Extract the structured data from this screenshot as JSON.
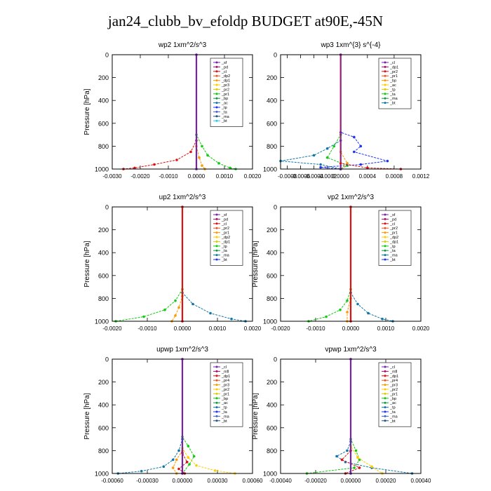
{
  "title": "jan24_clubb_bv_efoldp  BUDGET at90E,-45N",
  "chart_data": [
    {
      "id": "wp2",
      "type": "line",
      "title": "wp2   1xm^2/s^3",
      "ylabel": "Pressure  [hPa]",
      "xlim": [
        -0.003,
        0.002
      ],
      "ylim": [
        1000,
        0
      ],
      "xticks": [
        -0.003,
        -0.002,
        -0.001,
        0.0,
        0.001,
        0.002
      ],
      "xtick_labels": [
        "-0.0030",
        "-0.0020",
        "-0.0010",
        "0.0000",
        "0.0010",
        "0.0020"
      ],
      "yticks": [
        0,
        200,
        400,
        600,
        800,
        1000
      ],
      "legend": [
        "_sf",
        "_pd",
        "_cl",
        "_dp2",
        "_dp1",
        "_pr3",
        "_pr2",
        "_pr1",
        "_bp",
        "_ac",
        "_tp",
        "_ta",
        "_ma",
        "_bt"
      ],
      "series": [
        {
          "name": "_dp1",
          "color": "#dd1111",
          "points": [
            [
              0,
              0
            ],
            [
              0,
              750
            ],
            [
              -0.0002,
              850
            ],
            [
              -0.0007,
              920
            ],
            [
              -0.0015,
              960
            ],
            [
              -0.0022,
              990
            ],
            [
              -0.0026,
              1000
            ]
          ]
        },
        {
          "name": "_pr1",
          "color": "#11cc11",
          "points": [
            [
              0,
              0
            ],
            [
              0,
              700
            ],
            [
              0.0002,
              800
            ],
            [
              0.0004,
              880
            ],
            [
              0.0008,
              950
            ],
            [
              0.0012,
              990
            ],
            [
              0.0014,
              1000
            ]
          ]
        },
        {
          "name": "_pr2",
          "color": "#ff9900",
          "points": [
            [
              0,
              0
            ],
            [
              0,
              800
            ],
            [
              0.0001,
              900
            ],
            [
              0.0002,
              970
            ],
            [
              0.0003,
              1000
            ]
          ]
        },
        {
          "name": "_pd",
          "color": "#7722aa",
          "points": [
            [
              0,
              0
            ],
            [
              0,
              1000
            ]
          ]
        }
      ]
    },
    {
      "id": "wp3",
      "type": "line",
      "title": "wp3   1xm^{3} s^{-4}",
      "ylabel": "",
      "xlim": [
        -0.0009,
        0.0012
      ],
      "ylim": [
        1000,
        0
      ],
      "xticks": [
        -0.0008,
        -0.0006,
        -0.0004,
        -0.0002,
        0.0,
        0.0004,
        0.0008,
        0.0012
      ],
      "xtick_labels": [
        "-0.0008",
        "-0.0006",
        "-0.0004",
        "-0.0002",
        "0.0000",
        "0.0004",
        "0.0008",
        "0.0012"
      ],
      "yticks": [
        0,
        200,
        400,
        600,
        800,
        1000
      ],
      "legend": [
        "_cl",
        "_dp1",
        "_pr2",
        "_pr1",
        "_bp",
        "_ac",
        "_tp",
        "_ta",
        "_ma",
        "_bt"
      ],
      "series": [
        {
          "name": "_ac",
          "color": "#11cc11",
          "points": [
            [
              0,
              0
            ],
            [
              0,
              700
            ],
            [
              -0.0001,
              800
            ],
            [
              -0.0002,
              900
            ],
            [
              0.0001,
              970
            ],
            [
              0,
              1000
            ]
          ]
        },
        {
          "name": "_ta",
          "color": "#2233ee",
          "points": [
            [
              0,
              0
            ],
            [
              0,
              680
            ],
            [
              0.0002,
              720
            ],
            [
              0.0003,
              800
            ],
            [
              0.0002,
              850
            ],
            [
              0.0007,
              930
            ],
            [
              0.0003,
              960
            ],
            [
              -0.0003,
              985
            ],
            [
              0,
              1000
            ]
          ]
        },
        {
          "name": "_ma",
          "color": "#1177aa",
          "points": [
            [
              0,
              0
            ],
            [
              0,
              750
            ],
            [
              -0.0002,
              820
            ],
            [
              -0.0004,
              880
            ],
            [
              -0.0009,
              930
            ],
            [
              -0.0003,
              960
            ],
            [
              0,
              1000
            ]
          ]
        },
        {
          "name": "_pr2",
          "color": "#ff9900",
          "points": [
            [
              0,
              0
            ],
            [
              0,
              850
            ],
            [
              0.0001,
              950
            ],
            [
              0,
              1000
            ]
          ]
        },
        {
          "name": "_cl",
          "color": "#7722aa",
          "points": [
            [
              0,
              0
            ],
            [
              0,
              1000
            ]
          ]
        },
        {
          "name": "_dp1",
          "color": "#dd1111",
          "points": [
            [
              0,
              0
            ],
            [
              0,
              950
            ],
            [
              0.0004,
              990
            ],
            [
              0.0009,
              1000
            ]
          ]
        }
      ]
    },
    {
      "id": "up2",
      "type": "line",
      "title": "up2   1xm^2/s^3",
      "ylabel": "Pressure  [hPa]",
      "xlim": [
        -0.002,
        0.002
      ],
      "ylim": [
        1000,
        0
      ],
      "xticks": [
        -0.002,
        -0.001,
        0.0,
        0.001,
        0.002
      ],
      "xtick_labels": [
        "-0.0020",
        "-0.0010",
        "0.0000",
        "0.0010",
        "0.0020"
      ],
      "yticks": [
        0,
        200,
        400,
        600,
        800,
        1000
      ],
      "legend": [
        "_sf",
        "_pd",
        "_cl",
        "_pr2",
        "_pr1",
        "_dp2",
        "_dp1",
        "_tp",
        "_ta",
        "_ma",
        "_bt"
      ],
      "series": [
        {
          "name": "_dp2",
          "color": "#11cc11",
          "points": [
            [
              0,
              0
            ],
            [
              0,
              720
            ],
            [
              -0.0002,
              820
            ],
            [
              -0.0005,
              900
            ],
            [
              -0.0011,
              960
            ],
            [
              -0.0019,
              1000
            ]
          ]
        },
        {
          "name": "_ta",
          "color": "#1177aa",
          "points": [
            [
              0,
              0
            ],
            [
              0,
              750
            ],
            [
              0.0003,
              850
            ],
            [
              0.0008,
              930
            ],
            [
              0.0014,
              980
            ],
            [
              0.0018,
              1000
            ]
          ]
        },
        {
          "name": "_pr1",
          "color": "#ff9900",
          "points": [
            [
              0,
              0
            ],
            [
              0,
              780
            ],
            [
              -0.0001,
              880
            ],
            [
              -0.0002,
              950
            ],
            [
              -0.0003,
              1000
            ]
          ]
        },
        {
          "name": "_pd",
          "color": "#dd1111",
          "points": [
            [
              0,
              0
            ],
            [
              0,
              1000
            ]
          ]
        }
      ]
    },
    {
      "id": "vp2",
      "type": "line",
      "title": "vp2   1xm^2/s^3",
      "ylabel": "Pressure  [hPa]",
      "xlim": [
        -0.002,
        0.002
      ],
      "ylim": [
        1000,
        0
      ],
      "xticks": [
        -0.002,
        -0.001,
        0.0,
        0.001,
        0.002
      ],
      "xtick_labels": [
        "-0.0020",
        "-0.0010",
        "0.0000",
        "0.0010",
        "0.0020"
      ],
      "yticks": [
        0,
        200,
        400,
        600,
        800,
        1000
      ],
      "legend": [
        "_sf",
        "_pd",
        "_cl",
        "_pr2",
        "_pr1",
        "_dp2",
        "_dp1",
        "_tp",
        "_ta",
        "_ma",
        "_bt"
      ],
      "series": [
        {
          "name": "_dp2",
          "color": "#11cc11",
          "points": [
            [
              0,
              0
            ],
            [
              0,
              720
            ],
            [
              -0.0001,
              820
            ],
            [
              -0.0003,
              900
            ],
            [
              -0.0007,
              960
            ],
            [
              -0.0012,
              1000
            ]
          ]
        },
        {
          "name": "_ta",
          "color": "#1177aa",
          "points": [
            [
              0,
              0
            ],
            [
              0,
              750
            ],
            [
              0.0002,
              850
            ],
            [
              0.0005,
              930
            ],
            [
              0.0009,
              980
            ],
            [
              0.0012,
              1000
            ]
          ]
        },
        {
          "name": "_pr1",
          "color": "#ff9900",
          "points": [
            [
              0,
              0
            ],
            [
              0,
              800
            ],
            [
              -0.0001,
              920
            ],
            [
              -0.0001,
              1000
            ]
          ]
        },
        {
          "name": "_pd",
          "color": "#dd1111",
          "points": [
            [
              0,
              0
            ],
            [
              0,
              1000
            ]
          ]
        }
      ]
    },
    {
      "id": "upwp",
      "type": "line",
      "title": "upwp   1xm^2/s^3",
      "ylabel": "Pressure  [hPa]",
      "xlim": [
        -0.0006,
        0.0006
      ],
      "ylim": [
        1000,
        0
      ],
      "xticks": [
        -0.0006,
        -0.0003,
        0.0,
        0.0003,
        0.0006
      ],
      "xtick_labels": [
        "-0.00060",
        "-0.00030",
        "0.00000",
        "0.00030",
        "0.00060"
      ],
      "yticks": [
        0,
        200,
        400,
        600,
        800,
        1000
      ],
      "legend": [
        "_cl",
        "_mfl",
        "_dp1",
        "_pr4",
        "_pr3",
        "_pr2",
        "_pr1",
        "_bp",
        "_ac",
        "_tp",
        "_ta",
        "_ma",
        "_bt"
      ],
      "series": [
        {
          "name": "_ta",
          "color": "#1177aa",
          "points": [
            [
              0,
              0
            ],
            [
              0,
              700
            ],
            [
              -3e-05,
              800
            ],
            [
              -8e-05,
              880
            ],
            [
              -0.00016,
              940
            ],
            [
              -0.00035,
              980
            ],
            [
              -0.00055,
              1000
            ]
          ]
        },
        {
          "name": "_ac",
          "color": "#11cc11",
          "points": [
            [
              0,
              0
            ],
            [
              0,
              680
            ],
            [
              5e-05,
              760
            ],
            [
              0.0001,
              850
            ],
            [
              6e-05,
              920
            ],
            [
              0,
              1000
            ]
          ]
        },
        {
          "name": "_pr1",
          "color": "#ffcc00",
          "points": [
            [
              0,
              0
            ],
            [
              0,
              780
            ],
            [
              5e-05,
              860
            ],
            [
              0.00012,
              930
            ],
            [
              0.00028,
              975
            ],
            [
              0.00045,
              1000
            ]
          ]
        },
        {
          "name": "_pr2",
          "color": "#ff9900",
          "points": [
            [
              0,
              0
            ],
            [
              0,
              800
            ],
            [
              -5e-05,
              880
            ],
            [
              -8e-05,
              950
            ],
            [
              -5e-05,
              1000
            ]
          ]
        },
        {
          "name": "_dp1",
          "color": "#dd1111",
          "points": [
            [
              0,
              0
            ],
            [
              0,
              820
            ],
            [
              4e-05,
              900
            ],
            [
              -3e-05,
              960
            ],
            [
              2e-05,
              1000
            ]
          ]
        },
        {
          "name": "_cl",
          "color": "#7722aa",
          "points": [
            [
              0,
              0
            ],
            [
              0,
              1000
            ]
          ]
        }
      ]
    },
    {
      "id": "vpwp",
      "type": "line",
      "title": "vpwp   1xm^2/s^3",
      "ylabel": "Pressure  [hPa]",
      "xlim": [
        -0.0004,
        0.0004
      ],
      "ylim": [
        1000,
        0
      ],
      "xticks": [
        -0.0004,
        -0.0002,
        0.0,
        0.0002,
        0.0004
      ],
      "xtick_labels": [
        "-0.00040",
        "-0.00020",
        "0.00000",
        "0.00020",
        "0.00040"
      ],
      "yticks": [
        0,
        200,
        400,
        600,
        800,
        1000
      ],
      "legend": [
        "_cl",
        "_mfl",
        "_dp1",
        "_pr4",
        "_pr3",
        "_pr2",
        "_pr1",
        "_bp",
        "_ac",
        "_tp",
        "_ta",
        "_ma",
        "_bt"
      ],
      "series": [
        {
          "name": "_ta",
          "color": "#1177aa",
          "points": [
            [
              0,
              0
            ],
            [
              0,
              720
            ],
            [
              -2e-05,
              800
            ],
            [
              -8e-05,
              850
            ],
            [
              -3e-05,
              900
            ],
            [
              0.00012,
              950
            ],
            [
              0.00035,
              1000
            ]
          ]
        },
        {
          "name": "_ac",
          "color": "#11cc11",
          "points": [
            [
              0,
              0
            ],
            [
              0,
              700
            ],
            [
              3e-05,
              800
            ],
            [
              5e-05,
              880
            ],
            [
              2e-05,
              950
            ],
            [
              -0.00025,
              1000
            ]
          ]
        },
        {
          "name": "_pr1",
          "color": "#ffcc00",
          "points": [
            [
              0,
              0
            ],
            [
              0,
              760
            ],
            [
              4e-05,
              860
            ],
            [
              0.00012,
              940
            ],
            [
              0.00018,
              1000
            ]
          ]
        },
        {
          "name": "_dp1",
          "color": "#dd1111",
          "points": [
            [
              0,
              0
            ],
            [
              0,
              800
            ],
            [
              -5e-05,
              880
            ],
            [
              5e-05,
              950
            ],
            [
              -3e-05,
              1000
            ]
          ]
        },
        {
          "name": "_cl",
          "color": "#7722aa",
          "points": [
            [
              0,
              0
            ],
            [
              0,
              1000
            ]
          ]
        }
      ]
    }
  ]
}
